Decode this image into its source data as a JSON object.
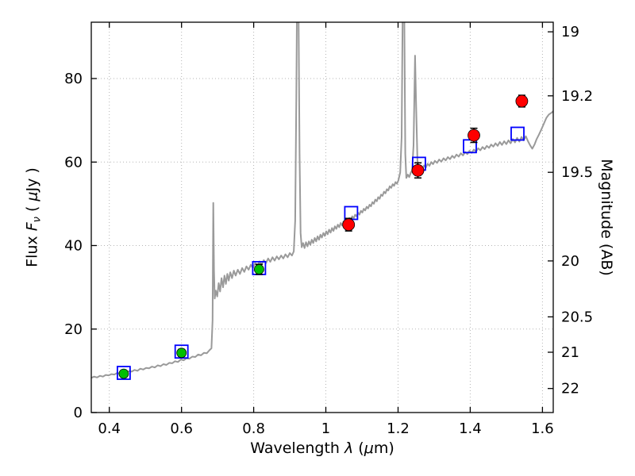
{
  "chart_data": {
    "type": "line",
    "title": "",
    "xlabel": {
      "pre": "Wavelength  ",
      "lambda": "λ",
      "open": " (",
      "mu": "μ",
      "close": "m)"
    },
    "ylabel_left": {
      "pre": "Flux  ",
      "f": "F",
      "nu": "ν",
      "open": "  ( ",
      "mu": "μ",
      "close": "Jy )"
    },
    "ylabel_right": {
      "text": "Magnitude (AB)"
    },
    "xlim": [
      0.35,
      1.63
    ],
    "ylim": [
      0,
      93.5
    ],
    "grid": true,
    "grid_color": "#b5b5b5",
    "frame_color": "#000000",
    "errorbar_color": "#000000",
    "xticks": [
      {
        "v": 0.4,
        "label": "0.4"
      },
      {
        "v": 0.6,
        "label": "0.6"
      },
      {
        "v": 0.8,
        "label": "0.8"
      },
      {
        "v": 1.0,
        "label": "1"
      },
      {
        "v": 1.2,
        "label": "1.2"
      },
      {
        "v": 1.4,
        "label": "1.4"
      },
      {
        "v": 1.6,
        "label": "1.6"
      }
    ],
    "yticks_left": [
      {
        "v": 0,
        "label": "0"
      },
      {
        "v": 20,
        "label": "20"
      },
      {
        "v": 40,
        "label": "40"
      },
      {
        "v": 60,
        "label": "60"
      },
      {
        "v": 80,
        "label": "80"
      }
    ],
    "yticks_right": [
      {
        "flux": 91.2,
        "label": "19"
      },
      {
        "flux": 75.86,
        "label": "19.2"
      },
      {
        "flux": 57.54,
        "label": "19.5"
      },
      {
        "flux": 36.31,
        "label": "20"
      },
      {
        "flux": 22.91,
        "label": "20.5"
      },
      {
        "flux": 14.45,
        "label": "21"
      },
      {
        "flux": 5.75,
        "label": "22"
      }
    ],
    "series": [
      {
        "name": "model-spectrum",
        "type": "line",
        "color": "#9a9a9a",
        "width": 2,
        "points": [
          [
            0.35,
            8.3
          ],
          [
            0.358,
            8.6
          ],
          [
            0.366,
            8.4
          ],
          [
            0.374,
            8.8
          ],
          [
            0.382,
            8.6
          ],
          [
            0.39,
            9.0
          ],
          [
            0.398,
            8.9
          ],
          [
            0.406,
            9.2
          ],
          [
            0.414,
            9.1
          ],
          [
            0.422,
            9.5
          ],
          [
            0.43,
            9.3
          ],
          [
            0.438,
            9.7
          ],
          [
            0.446,
            9.6
          ],
          [
            0.454,
            9.9
          ],
          [
            0.462,
            9.8
          ],
          [
            0.47,
            10.2
          ],
          [
            0.478,
            10.0
          ],
          [
            0.486,
            10.5
          ],
          [
            0.494,
            10.3
          ],
          [
            0.502,
            10.7
          ],
          [
            0.51,
            10.6
          ],
          [
            0.518,
            11.0
          ],
          [
            0.526,
            10.8
          ],
          [
            0.534,
            11.3
          ],
          [
            0.542,
            11.1
          ],
          [
            0.55,
            11.6
          ],
          [
            0.558,
            11.4
          ],
          [
            0.566,
            11.9
          ],
          [
            0.574,
            11.8
          ],
          [
            0.582,
            12.3
          ],
          [
            0.59,
            12.1
          ],
          [
            0.598,
            12.7
          ],
          [
            0.606,
            12.5
          ],
          [
            0.614,
            13.0
          ],
          [
            0.622,
            12.9
          ],
          [
            0.63,
            13.4
          ],
          [
            0.638,
            13.3
          ],
          [
            0.646,
            13.9
          ],
          [
            0.654,
            13.7
          ],
          [
            0.662,
            14.3
          ],
          [
            0.67,
            14.2
          ],
          [
            0.677,
            14.9
          ],
          [
            0.683,
            15.4
          ],
          [
            0.686,
            22.0
          ],
          [
            0.688,
            50.2
          ],
          [
            0.69,
            34.0
          ],
          [
            0.692,
            27.3
          ],
          [
            0.695,
            29.2
          ],
          [
            0.699,
            27.8
          ],
          [
            0.703,
            31.0
          ],
          [
            0.707,
            29.0
          ],
          [
            0.711,
            32.2
          ],
          [
            0.715,
            30.0
          ],
          [
            0.719,
            32.8
          ],
          [
            0.723,
            30.8
          ],
          [
            0.727,
            33.2
          ],
          [
            0.731,
            31.6
          ],
          [
            0.735,
            33.6
          ],
          [
            0.74,
            32.2
          ],
          [
            0.745,
            34.0
          ],
          [
            0.75,
            32.8
          ],
          [
            0.756,
            34.2
          ],
          [
            0.762,
            33.2
          ],
          [
            0.768,
            34.6
          ],
          [
            0.774,
            33.7
          ],
          [
            0.78,
            35.0
          ],
          [
            0.786,
            34.2
          ],
          [
            0.792,
            35.4
          ],
          [
            0.798,
            34.6
          ],
          [
            0.804,
            35.8
          ],
          [
            0.81,
            35.0
          ],
          [
            0.816,
            36.2
          ],
          [
            0.822,
            35.4
          ],
          [
            0.828,
            36.5
          ],
          [
            0.834,
            35.8
          ],
          [
            0.84,
            36.9
          ],
          [
            0.846,
            36.1
          ],
          [
            0.852,
            37.2
          ],
          [
            0.858,
            36.4
          ],
          [
            0.864,
            37.4
          ],
          [
            0.87,
            36.7
          ],
          [
            0.876,
            37.6
          ],
          [
            0.882,
            36.9
          ],
          [
            0.888,
            37.9
          ],
          [
            0.894,
            37.2
          ],
          [
            0.9,
            38.2
          ],
          [
            0.906,
            37.6
          ],
          [
            0.911,
            38.6
          ],
          [
            0.915,
            46.0
          ],
          [
            0.918,
            75.0
          ],
          [
            0.92,
            99.0
          ],
          [
            0.924,
            99.0
          ],
          [
            0.927,
            62.0
          ],
          [
            0.93,
            43.0
          ],
          [
            0.933,
            39.6
          ],
          [
            0.937,
            40.6
          ],
          [
            0.941,
            39.4
          ],
          [
            0.945,
            40.8
          ],
          [
            0.949,
            39.8
          ],
          [
            0.953,
            41.0
          ],
          [
            0.957,
            40.2
          ],
          [
            0.961,
            41.4
          ],
          [
            0.965,
            40.6
          ],
          [
            0.969,
            41.8
          ],
          [
            0.973,
            41.0
          ],
          [
            0.977,
            42.2
          ],
          [
            0.981,
            41.4
          ],
          [
            0.985,
            42.6
          ],
          [
            0.989,
            41.9
          ],
          [
            0.993,
            43.0
          ],
          [
            0.997,
            42.3
          ],
          [
            1.001,
            43.4
          ],
          [
            1.005,
            42.7
          ],
          [
            1.009,
            43.8
          ],
          [
            1.013,
            43.1
          ],
          [
            1.017,
            44.2
          ],
          [
            1.021,
            43.5
          ],
          [
            1.025,
            44.6
          ],
          [
            1.029,
            44.0
          ],
          [
            1.033,
            45.0
          ],
          [
            1.037,
            44.4
          ],
          [
            1.041,
            45.4
          ],
          [
            1.045,
            44.8
          ],
          [
            1.049,
            45.8
          ],
          [
            1.053,
            45.2
          ],
          [
            1.057,
            46.2
          ],
          [
            1.061,
            45.7
          ],
          [
            1.065,
            46.6
          ],
          [
            1.069,
            46.1
          ],
          [
            1.073,
            47.0
          ],
          [
            1.077,
            46.5
          ],
          [
            1.081,
            47.4
          ],
          [
            1.085,
            47.0
          ],
          [
            1.089,
            47.9
          ],
          [
            1.093,
            47.4
          ],
          [
            1.097,
            48.3
          ],
          [
            1.101,
            47.9
          ],
          [
            1.105,
            48.8
          ],
          [
            1.109,
            48.4
          ],
          [
            1.113,
            49.3
          ],
          [
            1.117,
            48.9
          ],
          [
            1.121,
            49.8
          ],
          [
            1.125,
            49.4
          ],
          [
            1.129,
            50.4
          ],
          [
            1.133,
            50.0
          ],
          [
            1.137,
            51.0
          ],
          [
            1.141,
            50.6
          ],
          [
            1.145,
            51.6
          ],
          [
            1.149,
            51.2
          ],
          [
            1.153,
            52.2
          ],
          [
            1.157,
            51.9
          ],
          [
            1.161,
            52.9
          ],
          [
            1.165,
            52.5
          ],
          [
            1.169,
            53.5
          ],
          [
            1.173,
            53.2
          ],
          [
            1.177,
            54.2
          ],
          [
            1.181,
            53.8
          ],
          [
            1.185,
            54.7
          ],
          [
            1.189,
            54.3
          ],
          [
            1.193,
            55.2
          ],
          [
            1.197,
            54.8
          ],
          [
            1.201,
            55.6
          ],
          [
            1.206,
            57.5
          ],
          [
            1.21,
            66.0
          ],
          [
            1.213,
            99.0
          ],
          [
            1.217,
            99.0
          ],
          [
            1.22,
            62.0
          ],
          [
            1.223,
            56.2
          ],
          [
            1.227,
            57.0
          ],
          [
            1.231,
            56.4
          ],
          [
            1.235,
            57.4
          ],
          [
            1.239,
            58.0
          ],
          [
            1.243,
            64.0
          ],
          [
            1.247,
            85.5
          ],
          [
            1.25,
            74.0
          ],
          [
            1.254,
            59.5
          ],
          [
            1.258,
            57.8
          ],
          [
            1.262,
            58.8
          ],
          [
            1.267,
            58.2
          ],
          [
            1.272,
            59.2
          ],
          [
            1.277,
            58.7
          ],
          [
            1.282,
            59.6
          ],
          [
            1.287,
            59.1
          ],
          [
            1.292,
            60.0
          ],
          [
            1.297,
            59.5
          ],
          [
            1.302,
            60.3
          ],
          [
            1.308,
            59.8
          ],
          [
            1.314,
            60.6
          ],
          [
            1.32,
            60.1
          ],
          [
            1.326,
            60.9
          ],
          [
            1.332,
            60.4
          ],
          [
            1.338,
            61.2
          ],
          [
            1.344,
            60.7
          ],
          [
            1.35,
            61.5
          ],
          [
            1.356,
            61.0
          ],
          [
            1.362,
            61.8
          ],
          [
            1.368,
            61.3
          ],
          [
            1.374,
            62.1
          ],
          [
            1.38,
            61.6
          ],
          [
            1.386,
            62.4
          ],
          [
            1.392,
            61.9
          ],
          [
            1.398,
            62.7
          ],
          [
            1.404,
            62.2
          ],
          [
            1.41,
            63.0
          ],
          [
            1.416,
            62.5
          ],
          [
            1.422,
            63.3
          ],
          [
            1.428,
            62.8
          ],
          [
            1.434,
            63.6
          ],
          [
            1.44,
            63.1
          ],
          [
            1.446,
            63.9
          ],
          [
            1.452,
            63.4
          ],
          [
            1.458,
            64.2
          ],
          [
            1.464,
            63.7
          ],
          [
            1.47,
            64.5
          ],
          [
            1.476,
            63.9
          ],
          [
            1.482,
            64.8
          ],
          [
            1.488,
            64.1
          ],
          [
            1.494,
            65.0
          ],
          [
            1.5,
            64.3
          ],
          [
            1.506,
            65.2
          ],
          [
            1.512,
            64.5
          ],
          [
            1.518,
            65.5
          ],
          [
            1.524,
            64.7
          ],
          [
            1.53,
            65.8
          ],
          [
            1.536,
            64.9
          ],
          [
            1.542,
            66.0
          ],
          [
            1.548,
            65.2
          ],
          [
            1.554,
            66.2
          ],
          [
            1.56,
            65.0
          ],
          [
            1.566,
            64.0
          ],
          [
            1.572,
            63.2
          ],
          [
            1.578,
            64.2
          ],
          [
            1.584,
            65.5
          ],
          [
            1.59,
            66.5
          ],
          [
            1.597,
            67.8
          ],
          [
            1.604,
            69.2
          ],
          [
            1.611,
            70.6
          ],
          [
            1.618,
            71.4
          ],
          [
            1.625,
            71.8
          ],
          [
            1.63,
            72.2
          ]
        ]
      },
      {
        "name": "model-photometry-squares",
        "type": "scatter",
        "marker": "square-open",
        "color": "#0000ff",
        "size": 16,
        "points": [
          [
            0.44,
            9.5
          ],
          [
            0.6,
            14.6
          ],
          [
            0.815,
            34.6
          ],
          [
            1.07,
            47.8
          ],
          [
            1.258,
            59.6
          ],
          [
            1.399,
            63.8
          ],
          [
            1.531,
            66.8
          ]
        ]
      },
      {
        "name": "observed-optical-points",
        "type": "scatter-errorbar",
        "marker": "circle",
        "color": "#00bf00",
        "size": 12,
        "points": [
          [
            0.44,
            9.3,
            0.7
          ],
          [
            0.6,
            14.3,
            0.8
          ],
          [
            0.815,
            34.3,
            1.2
          ]
        ]
      },
      {
        "name": "observed-infrared-points",
        "type": "scatter-errorbar",
        "marker": "circle",
        "color": "#ff0000",
        "size": 15,
        "points": [
          [
            1.063,
            45.0,
            1.5
          ],
          [
            1.255,
            58.0,
            1.8
          ],
          [
            1.41,
            66.4,
            1.7
          ],
          [
            1.543,
            74.6,
            1.4
          ]
        ]
      }
    ]
  }
}
